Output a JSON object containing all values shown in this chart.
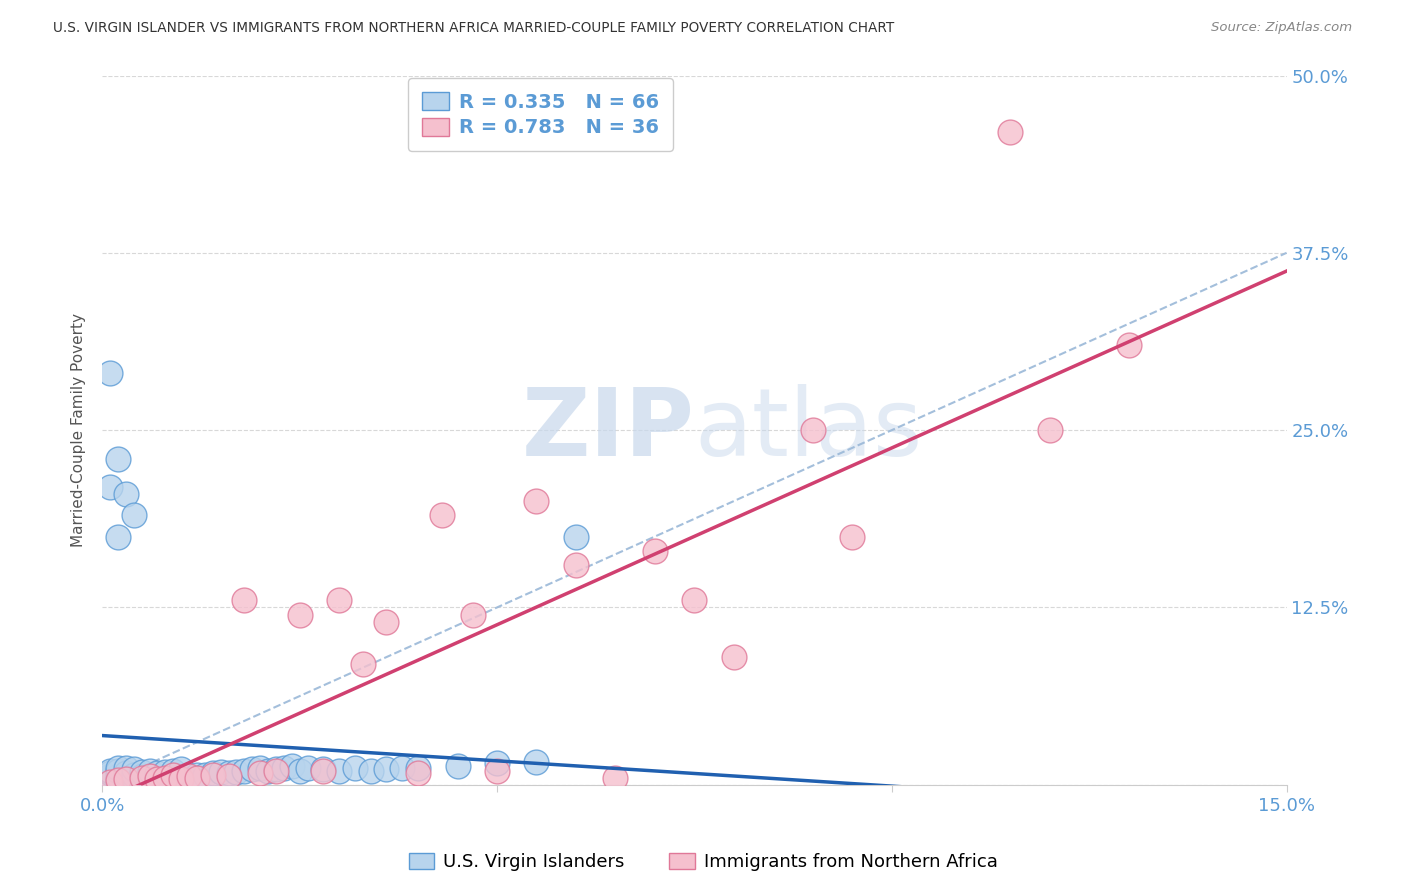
{
  "title": "U.S. VIRGIN ISLANDER VS IMMIGRANTS FROM NORTHERN AFRICA MARRIED-COUPLE FAMILY POVERTY CORRELATION CHART",
  "source": "Source: ZipAtlas.com",
  "ylabel": "Married-Couple Family Poverty",
  "xlim": [
    0.0,
    0.15
  ],
  "ylim": [
    0.0,
    0.5
  ],
  "xtick_vals": [
    0.0,
    0.05,
    0.1,
    0.15
  ],
  "xticklabels": [
    "0.0%",
    "",
    "",
    "15.0%"
  ],
  "ytick_vals": [
    0.0,
    0.125,
    0.25,
    0.375,
    0.5
  ],
  "yticklabels_right": [
    "",
    "12.5%",
    "25.0%",
    "37.5%",
    "50.0%"
  ],
  "blue_R": 0.335,
  "blue_N": 66,
  "pink_R": 0.783,
  "pink_N": 36,
  "blue_color": "#b8d4ed",
  "blue_edge_color": "#5b9bd5",
  "blue_line_color": "#2060b0",
  "pink_color": "#f5c0ce",
  "pink_edge_color": "#e07898",
  "pink_line_color": "#d04070",
  "dashed_line_color": "#9ab8d8",
  "watermark_color": "#c8d8ec",
  "background_color": "#ffffff",
  "grid_color": "#d8d8d8",
  "label_color": "#5b9bd5",
  "title_color": "#333333",
  "blue_x": [
    0.001,
    0.001,
    0.001,
    0.001,
    0.001,
    0.002,
    0.002,
    0.002,
    0.002,
    0.002,
    0.003,
    0.003,
    0.003,
    0.003,
    0.003,
    0.004,
    0.004,
    0.004,
    0.004,
    0.005,
    0.005,
    0.005,
    0.006,
    0.006,
    0.006,
    0.007,
    0.007,
    0.008,
    0.008,
    0.009,
    0.009,
    0.01,
    0.01,
    0.011,
    0.012,
    0.013,
    0.014,
    0.015,
    0.016,
    0.017,
    0.018,
    0.019,
    0.02,
    0.021,
    0.022,
    0.023,
    0.024,
    0.025,
    0.026,
    0.028,
    0.03,
    0.032,
    0.034,
    0.036,
    0.038,
    0.04,
    0.045,
    0.05,
    0.055,
    0.06,
    0.001,
    0.001,
    0.002,
    0.002,
    0.003,
    0.004
  ],
  "blue_y": [
    0.002,
    0.004,
    0.006,
    0.008,
    0.01,
    0.002,
    0.004,
    0.006,
    0.01,
    0.012,
    0.002,
    0.004,
    0.006,
    0.008,
    0.012,
    0.003,
    0.005,
    0.007,
    0.011,
    0.003,
    0.006,
    0.009,
    0.003,
    0.006,
    0.01,
    0.004,
    0.008,
    0.004,
    0.009,
    0.005,
    0.01,
    0.005,
    0.011,
    0.006,
    0.007,
    0.007,
    0.008,
    0.009,
    0.008,
    0.009,
    0.01,
    0.011,
    0.012,
    0.01,
    0.011,
    0.012,
    0.013,
    0.01,
    0.012,
    0.011,
    0.01,
    0.012,
    0.01,
    0.011,
    0.012,
    0.012,
    0.013,
    0.015,
    0.016,
    0.175,
    0.21,
    0.29,
    0.23,
    0.175,
    0.205,
    0.19
  ],
  "pink_x": [
    0.001,
    0.002,
    0.003,
    0.005,
    0.006,
    0.007,
    0.008,
    0.009,
    0.01,
    0.011,
    0.012,
    0.014,
    0.016,
    0.018,
    0.02,
    0.022,
    0.025,
    0.028,
    0.03,
    0.033,
    0.036,
    0.04,
    0.043,
    0.047,
    0.05,
    0.055,
    0.06,
    0.065,
    0.07,
    0.075,
    0.08,
    0.09,
    0.095,
    0.115,
    0.12,
    0.13
  ],
  "pink_y": [
    0.002,
    0.003,
    0.004,
    0.005,
    0.006,
    0.004,
    0.005,
    0.007,
    0.004,
    0.006,
    0.005,
    0.007,
    0.006,
    0.13,
    0.008,
    0.01,
    0.12,
    0.01,
    0.13,
    0.085,
    0.115,
    0.008,
    0.19,
    0.12,
    0.01,
    0.2,
    0.155,
    0.005,
    0.165,
    0.13,
    0.09,
    0.25,
    0.175,
    0.46,
    0.25,
    0.31
  ]
}
